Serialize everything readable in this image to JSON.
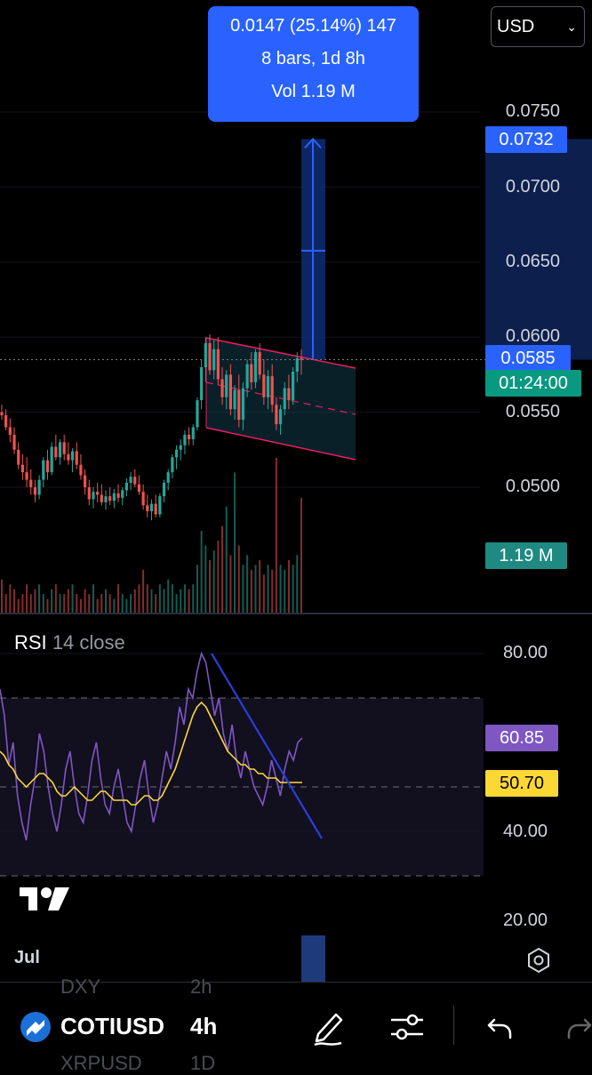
{
  "currency_select": {
    "value": "USD"
  },
  "measure_tooltip": {
    "line1": "0.0147 (25.14%) 147",
    "line2": "8 bars, 1d 8h",
    "line3": "Vol 1.19 M"
  },
  "price_axis": {
    "labels": [
      "0.0750",
      "0.0700",
      "0.0650",
      "0.0600",
      "0.0550",
      "0.0500"
    ],
    "target_tag": "0.0732",
    "last_price_tag": "0.0585",
    "countdown_tag": "01:24:00",
    "volume_tag": "1.19 M"
  },
  "rsi_panel": {
    "name": "RSI",
    "params": "14 close",
    "axis_labels": [
      "80.00",
      "40.00",
      "20.00"
    ],
    "rsi_tag": "60.85",
    "ma_tag": "50.70"
  },
  "time_axis": {
    "label": "Jul"
  },
  "bottom_toolbar": {
    "symbol": "COTIUSD",
    "interval": "4h",
    "ghost_symbol_top": "DXY",
    "ghost_interval_top": "2h",
    "ghost_symbol_bottom": "XRPUSD",
    "ghost_interval_bottom": "1D"
  },
  "colors": {
    "up": "#26a69a",
    "down": "#ef5350",
    "measure": "#2962ff",
    "rsi_line": "#7e57c2",
    "rsi_ma": "#fdd835",
    "channel": "#e91e63"
  },
  "chart_data": {
    "type": "candlestick",
    "symbol": "COTIUSD",
    "interval": "4h",
    "last_price": 0.0585,
    "price_range": [
      0.0455,
      0.0785
    ],
    "measure": {
      "from": 0.0585,
      "to": 0.0732,
      "change": 0.0147,
      "percent": 25.14,
      "bars": 8,
      "volume": "1.19 M"
    },
    "candles": [
      [
        0.055,
        0.0555,
        0.0545,
        0.0548
      ],
      [
        0.0548,
        0.0552,
        0.0538,
        0.054
      ],
      [
        0.054,
        0.0546,
        0.053,
        0.0535
      ],
      [
        0.0535,
        0.054,
        0.0522,
        0.0525
      ],
      [
        0.0525,
        0.053,
        0.0512,
        0.0515
      ],
      [
        0.0515,
        0.0522,
        0.0505,
        0.051
      ],
      [
        0.051,
        0.052,
        0.05,
        0.0505
      ],
      [
        0.0505,
        0.0512,
        0.0495,
        0.05
      ],
      [
        0.05,
        0.0505,
        0.049,
        0.0495
      ],
      [
        0.0495,
        0.0508,
        0.0492,
        0.0505
      ],
      [
        0.0505,
        0.052,
        0.05,
        0.0518
      ],
      [
        0.0518,
        0.0525,
        0.0505,
        0.051
      ],
      [
        0.051,
        0.053,
        0.0508,
        0.0527
      ],
      [
        0.0527,
        0.0535,
        0.0518,
        0.052
      ],
      [
        0.052,
        0.0532,
        0.0515,
        0.053
      ],
      [
        0.053,
        0.0535,
        0.0518,
        0.0522
      ],
      [
        0.0522,
        0.053,
        0.0515,
        0.0518
      ],
      [
        0.0518,
        0.0526,
        0.051,
        0.0524
      ],
      [
        0.0524,
        0.053,
        0.0512,
        0.0515
      ],
      [
        0.0515,
        0.0522,
        0.0505,
        0.0508
      ],
      [
        0.0508,
        0.0512,
        0.0495,
        0.05
      ],
      [
        0.05,
        0.0505,
        0.0488,
        0.0492
      ],
      [
        0.0492,
        0.05,
        0.0486,
        0.0497
      ],
      [
        0.0497,
        0.0503,
        0.049,
        0.0495
      ],
      [
        0.0495,
        0.0502,
        0.0488,
        0.049
      ],
      [
        0.049,
        0.0498,
        0.0485,
        0.0494
      ],
      [
        0.0494,
        0.05,
        0.0488,
        0.0491
      ],
      [
        0.0491,
        0.0499,
        0.0486,
        0.0496
      ],
      [
        0.0496,
        0.0502,
        0.049,
        0.0493
      ],
      [
        0.0493,
        0.05,
        0.0488,
        0.0498
      ],
      [
        0.0498,
        0.0506,
        0.0494,
        0.0503
      ],
      [
        0.0503,
        0.051,
        0.0498,
        0.0507
      ],
      [
        0.0507,
        0.0512,
        0.05,
        0.0502
      ],
      [
        0.0502,
        0.0508,
        0.0495,
        0.0497
      ],
      [
        0.0497,
        0.0502,
        0.0485,
        0.0488
      ],
      [
        0.0488,
        0.0495,
        0.048,
        0.0484
      ],
      [
        0.0484,
        0.0492,
        0.0478,
        0.0489
      ],
      [
        0.0489,
        0.0495,
        0.048,
        0.0482
      ],
      [
        0.0482,
        0.0496,
        0.048,
        0.0494
      ],
      [
        0.0494,
        0.0505,
        0.049,
        0.0503
      ],
      [
        0.0503,
        0.0512,
        0.0498,
        0.051
      ],
      [
        0.051,
        0.0522,
        0.0506,
        0.052
      ],
      [
        0.052,
        0.0528,
        0.0512,
        0.0525
      ],
      [
        0.0525,
        0.0532,
        0.0518,
        0.0528
      ],
      [
        0.0528,
        0.0538,
        0.0522,
        0.0535
      ],
      [
        0.0535,
        0.054,
        0.0528,
        0.0532
      ],
      [
        0.0532,
        0.0542,
        0.0528,
        0.054
      ],
      [
        0.054,
        0.056,
        0.0538,
        0.0558
      ],
      [
        0.0558,
        0.0585,
        0.0552,
        0.058
      ],
      [
        0.058,
        0.06,
        0.057,
        0.0596
      ],
      [
        0.0596,
        0.0602,
        0.0575,
        0.0578
      ],
      [
        0.0578,
        0.0598,
        0.0572,
        0.0592
      ],
      [
        0.0592,
        0.06,
        0.0568,
        0.0572
      ],
      [
        0.0572,
        0.058,
        0.0555,
        0.056
      ],
      [
        0.056,
        0.0578,
        0.0552,
        0.0575
      ],
      [
        0.0575,
        0.0582,
        0.0548,
        0.0552
      ],
      [
        0.0552,
        0.0568,
        0.0545,
        0.0565
      ],
      [
        0.0565,
        0.0575,
        0.054,
        0.0545
      ],
      [
        0.0545,
        0.057,
        0.0538,
        0.0566
      ],
      [
        0.0566,
        0.0585,
        0.056,
        0.0582
      ],
      [
        0.0582,
        0.059,
        0.0565,
        0.057
      ],
      [
        0.057,
        0.0592,
        0.0566,
        0.059
      ],
      [
        0.059,
        0.0596,
        0.0572,
        0.0575
      ],
      [
        0.0575,
        0.0585,
        0.0555,
        0.056
      ],
      [
        0.056,
        0.0578,
        0.0552,
        0.0574
      ],
      [
        0.0574,
        0.0582,
        0.055,
        0.0555
      ],
      [
        0.0555,
        0.056,
        0.0538,
        0.0542
      ],
      [
        0.0542,
        0.0555,
        0.0535,
        0.0552
      ],
      [
        0.0552,
        0.057,
        0.0548,
        0.0566
      ],
      [
        0.0566,
        0.0575,
        0.0552,
        0.0558
      ],
      [
        0.0558,
        0.058,
        0.0555,
        0.0577
      ],
      [
        0.0577,
        0.059,
        0.057,
        0.0586
      ],
      [
        0.0586,
        0.0592,
        0.0575,
        0.0585
      ]
    ],
    "volume": [
      0.35,
      0.2,
      0.3,
      0.25,
      0.15,
      0.2,
      0.3,
      0.2,
      0.25,
      0.3,
      0.2,
      0.15,
      0.25,
      0.3,
      0.2,
      0.2,
      0.25,
      0.3,
      0.2,
      0.15,
      0.25,
      0.2,
      0.3,
      0.15,
      0.2,
      0.25,
      0.2,
      0.15,
      0.3,
      0.2,
      0.15,
      0.2,
      0.25,
      0.3,
      0.45,
      0.3,
      0.25,
      0.2,
      0.3,
      0.25,
      0.35,
      0.3,
      0.2,
      0.25,
      0.3,
      0.25,
      0.3,
      0.5,
      0.85,
      0.7,
      0.55,
      0.65,
      0.75,
      0.9,
      1.1,
      0.6,
      1.45,
      0.7,
      0.5,
      0.6,
      0.45,
      0.5,
      0.55,
      0.4,
      0.5,
      0.45,
      1.6,
      0.5,
      0.45,
      0.55,
      0.5,
      0.6,
      1.19
    ],
    "rsi": [
      72,
      66,
      55,
      60,
      48,
      42,
      38,
      46,
      52,
      62,
      58,
      50,
      44,
      40,
      46,
      54,
      58,
      50,
      44,
      42,
      48,
      56,
      60,
      52,
      46,
      44,
      50,
      54,
      48,
      42,
      40,
      46,
      52,
      56,
      48,
      42,
      46,
      52,
      58,
      54,
      60,
      68,
      64,
      72,
      70,
      76,
      80,
      78,
      72,
      66,
      70,
      62,
      58,
      64,
      56,
      52,
      58,
      54,
      50,
      48,
      46,
      50,
      56,
      52,
      48,
      54,
      58,
      56,
      60,
      61
    ],
    "rsi_ma": [
      58,
      57,
      55,
      54,
      52,
      51,
      50,
      51,
      52,
      53,
      53,
      52,
      51,
      49,
      48,
      48,
      49,
      50,
      49,
      48,
      47,
      47,
      48,
      49,
      49,
      48,
      47,
      47,
      47,
      47,
      46,
      46,
      47,
      48,
      48,
      47,
      47,
      48,
      50,
      52,
      54,
      57,
      60,
      63,
      66,
      68,
      69,
      68,
      66,
      64,
      62,
      60,
      58,
      57,
      56,
      55,
      55,
      54,
      54,
      53,
      53,
      52,
      52,
      52,
      51,
      51,
      51,
      51,
      51,
      51
    ],
    "rsi_range": [
      15,
      85
    ],
    "rsi_bands": [
      70,
      50,
      30
    ],
    "rsi_axis": [
      "80.00",
      "40.00",
      "20.00"
    ]
  }
}
